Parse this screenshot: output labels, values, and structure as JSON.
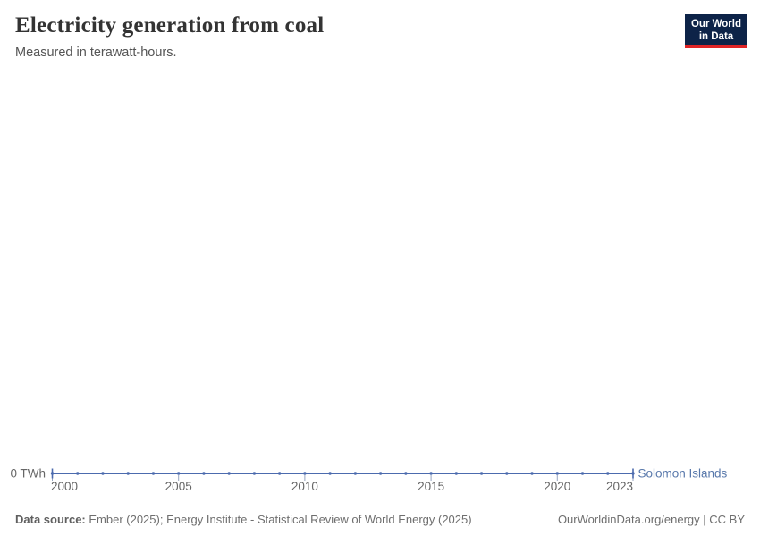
{
  "header": {
    "title": "Electricity generation from coal",
    "subtitle": "Measured in terawatt-hours."
  },
  "logo": {
    "line1": "Our World",
    "line2": "in Data",
    "bg_color": "#0d2348",
    "accent_color": "#e02426"
  },
  "chart_data": {
    "type": "line",
    "title": "Electricity generation from coal",
    "unit": "terawatt-hours",
    "x": [
      2000,
      2001,
      2002,
      2003,
      2004,
      2005,
      2006,
      2007,
      2008,
      2009,
      2010,
      2011,
      2012,
      2013,
      2014,
      2015,
      2016,
      2017,
      2018,
      2019,
      2020,
      2021,
      2022,
      2023
    ],
    "series": [
      {
        "name": "Solomon Islands",
        "color": "#4c6bae",
        "values": [
          0,
          0,
          0,
          0,
          0,
          0,
          0,
          0,
          0,
          0,
          0,
          0,
          0,
          0,
          0,
          0,
          0,
          0,
          0,
          0,
          0,
          0,
          0,
          0
        ]
      }
    ],
    "x_ticks": [
      2000,
      2005,
      2010,
      2015,
      2020,
      2023
    ],
    "y_ticks": [
      {
        "value": 0,
        "label": "0 TWh"
      }
    ],
    "ylim": [
      0,
      1
    ],
    "grid": false,
    "legend_position": "right-of-line",
    "entity_label": "Solomon Islands"
  },
  "footer": {
    "source_label": "Data source:",
    "source_text": " Ember (2025); Energy Institute - Statistical Review of World Energy (2025)",
    "origin_text": "OurWorldinData.org/energy | CC BY"
  },
  "colors": {
    "line": "#4c6bae",
    "axis_text": "#666666",
    "entity_label": "#5878ab",
    "tick_mark": "#97a5c0"
  }
}
